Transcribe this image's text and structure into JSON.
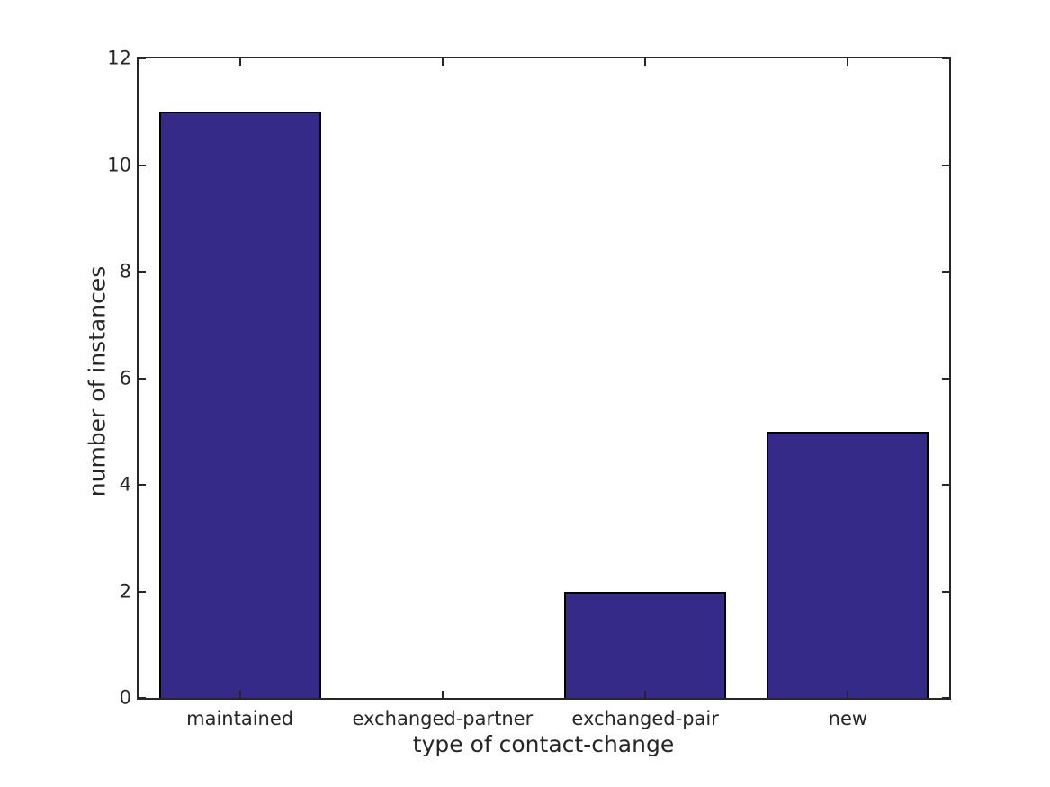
{
  "chart_data": {
    "type": "bar",
    "categories": [
      "maintained",
      "exchanged-partner",
      "exchanged-pair",
      "new"
    ],
    "values": [
      11,
      0,
      2,
      5
    ],
    "title": "",
    "xlabel": "type of contact-change",
    "ylabel": "number of instances",
    "ylim": [
      0,
      12
    ],
    "yticks": [
      0,
      2,
      4,
      6,
      8,
      10,
      12
    ],
    "bar_width_fraction": 0.8,
    "grid": "off",
    "legend": "none",
    "tick_direction": "in",
    "colors": {
      "bar_fill": "#352a87",
      "bar_edge": "#000000",
      "axis": "#262626",
      "text": "#262626",
      "background": "#ffffff"
    }
  }
}
